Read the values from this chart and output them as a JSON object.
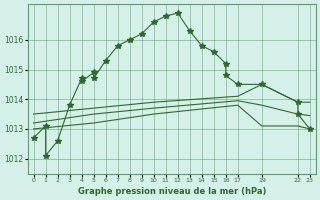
{
  "title": "Graphe pression niveau de la mer (hPa)",
  "background_color": "#d4f0e8",
  "grid_color": "#5a9e6a",
  "line_color": "#2d6a2d",
  "ylim": [
    1011.5,
    1017.2
  ],
  "yticks": [
    1012,
    1013,
    1014,
    1015,
    1016
  ],
  "xlim": [
    -0.5,
    23.5
  ],
  "x_tick_positions": [
    0,
    1,
    2,
    3,
    4,
    5,
    6,
    7,
    8,
    9,
    10,
    11,
    12,
    13,
    14,
    15,
    16,
    17,
    19,
    22,
    23
  ],
  "x_tick_labels": [
    "0",
    "1",
    "2",
    "3",
    "4",
    "5",
    "6",
    "7",
    "8",
    "9",
    "10",
    "11",
    "12",
    "13",
    "14",
    "15",
    "16",
    "17",
    "19",
    "22",
    "23"
  ],
  "series_main": {
    "x": [
      0,
      1,
      1,
      2,
      3,
      4,
      4,
      5,
      5,
      6,
      7,
      8,
      9,
      10,
      11,
      12,
      13,
      14,
      15,
      16,
      16,
      17,
      19,
      22,
      22,
      23
    ],
    "y": [
      1012.7,
      1013.1,
      1012.1,
      1012.6,
      1013.8,
      1014.7,
      1014.6,
      1014.9,
      1014.7,
      1015.3,
      1015.8,
      1016.0,
      1016.2,
      1016.6,
      1016.8,
      1016.9,
      1016.3,
      1015.8,
      1015.6,
      1015.2,
      1014.8,
      1014.5,
      1014.5,
      1013.9,
      1013.5,
      1013.0
    ]
  },
  "series_upper": {
    "x": [
      0,
      5,
      10,
      17,
      19,
      22,
      23
    ],
    "y": [
      1013.5,
      1013.7,
      1013.9,
      1014.1,
      1014.5,
      1013.9,
      1013.9
    ]
  },
  "series_lower": {
    "x": [
      0,
      5,
      10,
      17,
      19,
      22,
      23
    ],
    "y": [
      1013.0,
      1013.2,
      1013.5,
      1013.8,
      1013.1,
      1013.1,
      1013.0
    ]
  },
  "series_mid": {
    "x": [
      0,
      5,
      10,
      17,
      19,
      22,
      23
    ],
    "y": [
      1013.2,
      1013.5,
      1013.7,
      1013.95,
      1013.8,
      1013.5,
      1013.45
    ]
  }
}
